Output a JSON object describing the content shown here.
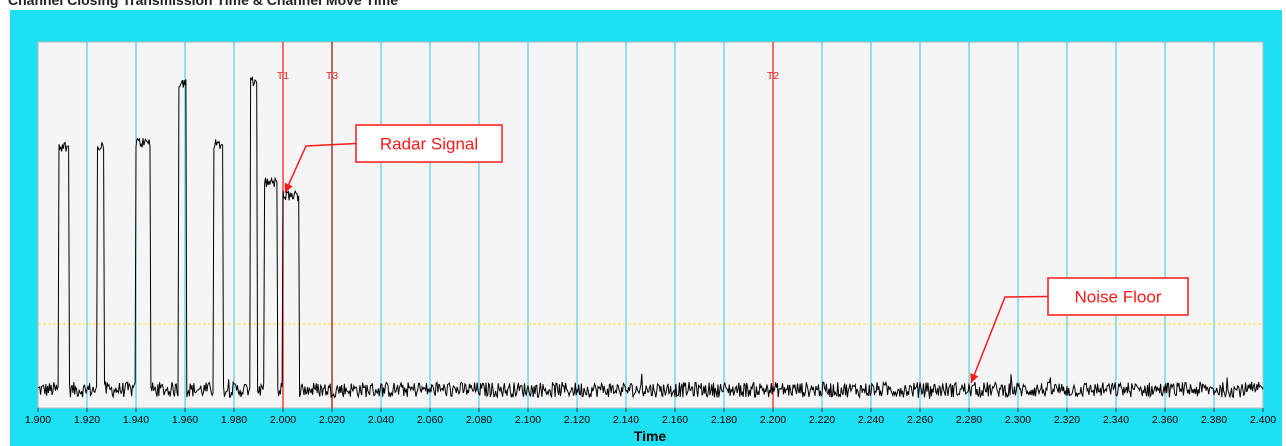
{
  "header": {
    "title": "Channel Closing Transmission Time & Channel Move Time"
  },
  "chart_data": {
    "type": "line",
    "title": "",
    "xlabel": "Time",
    "ylabel": "",
    "xlim": [
      1.9,
      2.4
    ],
    "ylim": [
      0,
      100
    ],
    "x_ticks": [
      "1.900",
      "1.920",
      "1.940",
      "1.960",
      "1.980",
      "2.000",
      "2.020",
      "2.040",
      "2.060",
      "2.080",
      "2.100",
      "2.120",
      "2.140",
      "2.160",
      "2.180",
      "2.200",
      "2.220",
      "2.240",
      "2.260",
      "2.280",
      "2.300",
      "2.320",
      "2.340",
      "2.360",
      "2.380",
      "2.400"
    ],
    "grid": true,
    "threshold": {
      "y": 22.9,
      "style": "dashed",
      "color": "#f2e23a"
    },
    "markers": [
      {
        "label": "T1",
        "x": 2.0,
        "color": "#ff2020"
      },
      {
        "label": "T3",
        "x": 2.02,
        "color": "#a01818"
      },
      {
        "label": "T2",
        "x": 2.2,
        "color": "#ff2020"
      }
    ],
    "annotations": [
      {
        "text": "Radar Signal",
        "target_x": 2.0,
        "target_y": 58
      },
      {
        "text": "Noise Floor",
        "target_x": 2.28,
        "target_y": 6
      }
    ],
    "series": [
      {
        "name": "",
        "color": "#000000",
        "noise_floor": 5,
        "pulses": [
          {
            "start": 1.9085,
            "end": 1.9125,
            "level": 71.5
          },
          {
            "start": 1.924,
            "end": 1.927,
            "level": 72
          },
          {
            "start": 1.94,
            "end": 1.946,
            "level": 72.5
          },
          {
            "start": 1.9575,
            "end": 1.9605,
            "level": 89
          },
          {
            "start": 1.9715,
            "end": 1.9755,
            "level": 72
          },
          {
            "start": 1.9865,
            "end": 1.9895,
            "level": 89
          },
          {
            "start": 1.9925,
            "end": 1.9975,
            "level": 61.5
          },
          {
            "start": 2.0,
            "end": 2.0065,
            "level": 58
          }
        ]
      }
    ]
  }
}
